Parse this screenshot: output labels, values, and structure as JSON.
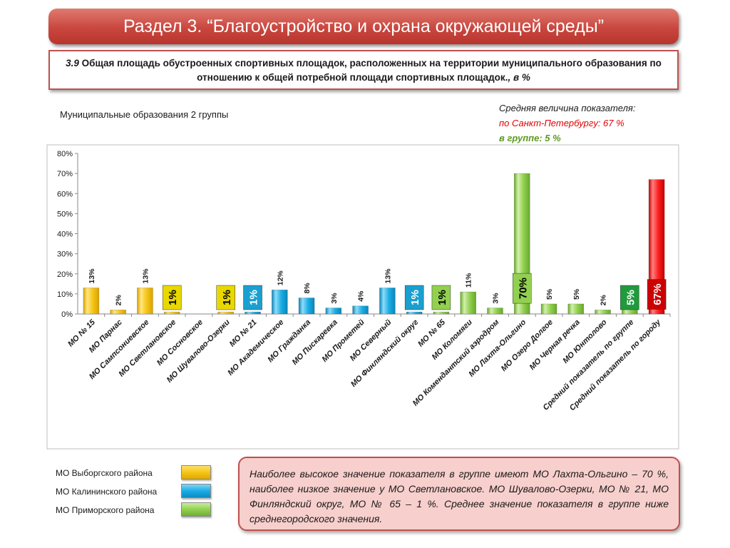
{
  "header": {
    "title": "Раздел 3. “Благоустройство и охрана окружающей среды”"
  },
  "subtitle": {
    "number": "3.9",
    "text": "Общая площадь обустроенных спортивных площадок, расположенных на территории муниципального образования по отношению к общей потребной площади спортивных площадок.",
    "unit": ", в %"
  },
  "group_label": "Муниципальные образования 2 группы",
  "average": {
    "heading": "Средняя величина показателя:",
    "city": "по Санкт-Петербургу:  67 %",
    "group": "в группе:  5 %"
  },
  "legend": [
    {
      "label": "МО Выборгского района",
      "color": "#f5c518"
    },
    {
      "label": "МО Калининского района",
      "color": "#1aaee6"
    },
    {
      "label": "МО Приморского района",
      "color": "#92d050"
    }
  ],
  "note": "Наиболее высокое значение показателя в группе имеют МО Лахта-Ольгино – 70 %, наиболее низкое значение у МО Светлановское. МО Шувалово-Озерки, МО № 21, МО Финляндский округ, МО № 65 – 1 %. Среднее значение показателя в группе ниже среднегородского значения.",
  "chart_data": {
    "type": "bar",
    "ylim": [
      0,
      80
    ],
    "yticks": [
      "0%",
      "10%",
      "20%",
      "30%",
      "40%",
      "50%",
      "60%",
      "70%",
      "80%"
    ],
    "categories": [
      "МО № 15",
      "МО Парнас",
      "МО Сампсониевское",
      "МО Светлановское",
      "МО Сосновское",
      "МО Шувалово-Озерки",
      "МО № 21",
      "МО Академическое",
      "МО Гражданка",
      "МО Пискаревка",
      "МО Прометей",
      "МО Северный",
      "МО Финляндский округ",
      "МО № 65",
      "МО Коломяги",
      "МО Комендантский аэродром",
      "МО Лахта-Ольгино",
      "МО Озеро Долгое",
      "МО Черная речка",
      "МО Юнтолово",
      "Средний показатель по группе",
      "Средний показатель по городу"
    ],
    "values": [
      13,
      2,
      13,
      1,
      0,
      1,
      1,
      12,
      8,
      3,
      4,
      13,
      1,
      1,
      11,
      3,
      70,
      5,
      5,
      2,
      5,
      67
    ],
    "labels": [
      "13%",
      "2%",
      "13%",
      "1%",
      "",
      "1%",
      "1%",
      "12%",
      "8%",
      "3%",
      "4%",
      "13%",
      "1%",
      "1%",
      "11%",
      "3%",
      "70%",
      "5%",
      "5%",
      "2%",
      "5%",
      "67%"
    ],
    "districts": [
      "viborg",
      "viborg",
      "viborg",
      "viborg",
      "viborg",
      "viborg",
      "kalinin",
      "kalinin",
      "kalinin",
      "kalinin",
      "kalinin",
      "kalinin",
      "kalinin",
      "primor",
      "primor",
      "primor",
      "primor",
      "primor",
      "primor",
      "primor",
      "group",
      "city"
    ],
    "colors": {
      "viborg": "#f5c518",
      "kalinin": "#1aaee6",
      "primor": "#92d050",
      "group": "#92d050",
      "city": "#ff2020"
    },
    "boxed_label_colors": {
      "viborg": "#e8d800",
      "kalinin": "#1a9fd0",
      "primor": "#92d050",
      "group": "#1f9a3c",
      "city": "#cc0000"
    }
  }
}
